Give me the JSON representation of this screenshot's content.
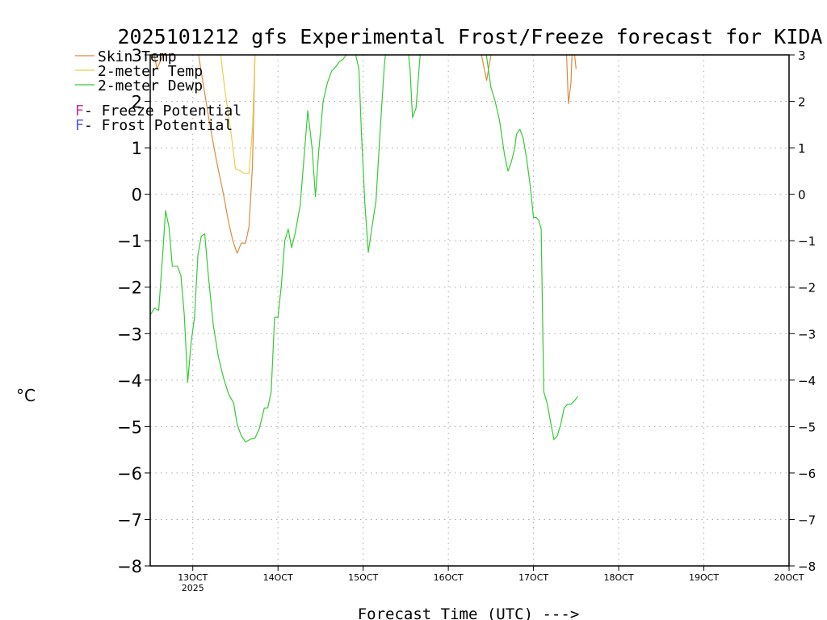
{
  "chart_data": {
    "type": "line",
    "title": "2025101212 gfs Experimental Frost/Freeze forecast for KIDA",
    "xlabel": "Forecast Time (UTC) --->",
    "ylabel_unit": "°C",
    "ylim": [
      -8,
      3
    ],
    "xlim_days": [
      12.5,
      20.0
    ],
    "y_ticks": [
      -8,
      -7,
      -6,
      -5,
      -4,
      -3,
      -2,
      -1,
      0,
      1,
      2,
      3
    ],
    "x_ticks": [
      {
        "day": 13,
        "label": "13OCT",
        "sublabel": "2025"
      },
      {
        "day": 14,
        "label": "14OCT",
        "sublabel": ""
      },
      {
        "day": 15,
        "label": "15OCT",
        "sublabel": ""
      },
      {
        "day": 16,
        "label": "16OCT",
        "sublabel": ""
      },
      {
        "day": 17,
        "label": "17OCT",
        "sublabel": ""
      },
      {
        "day": 18,
        "label": "18OCT",
        "sublabel": ""
      },
      {
        "day": 19,
        "label": "19OCT",
        "sublabel": ""
      },
      {
        "day": 20,
        "label": "20OCT",
        "sublabel": ""
      }
    ],
    "grid": true,
    "legend": [
      {
        "marker": "",
        "text": "Skin Temp",
        "color": "#e08a3c"
      },
      {
        "marker": "",
        "text": "2-meter Temp",
        "color": "#e8d04a"
      },
      {
        "marker": "",
        "text": "2-meter Dewp",
        "color": "#33cc33"
      },
      {
        "marker": "F",
        "text": " - Freeze Potential",
        "color": "#cc3399"
      },
      {
        "marker": "F",
        "text": " - Frost Potential",
        "color": "#5a5aee"
      }
    ],
    "series": [
      {
        "name": "Skin Temp",
        "color": "#e08a3c",
        "segments": [
          [
            [
              12.5,
              3.4
            ],
            [
              12.58,
              2.7
            ],
            [
              12.65,
              3.0
            ],
            [
              12.72,
              3.6
            ]
          ],
          [
            [
              13.05,
              3.2
            ],
            [
              13.12,
              2.4
            ],
            [
              13.2,
              1.5
            ],
            [
              13.28,
              0.7
            ],
            [
              13.36,
              0.0
            ],
            [
              13.42,
              -0.6
            ],
            [
              13.47,
              -1.0
            ],
            [
              13.52,
              -1.27
            ],
            [
              13.57,
              -1.05
            ],
            [
              13.62,
              -1.05
            ],
            [
              13.66,
              -0.7
            ],
            [
              13.7,
              0.6
            ],
            [
              13.73,
              3.0
            ],
            [
              13.75,
              3.6
            ]
          ],
          [
            [
              16.35,
              3.4
            ],
            [
              16.4,
              2.9
            ],
            [
              16.45,
              2.45
            ],
            [
              16.5,
              3.0
            ],
            [
              16.55,
              3.6
            ]
          ],
          [
            [
              17.38,
              3.4
            ],
            [
              17.41,
              1.95
            ],
            [
              17.44,
              2.4
            ],
            [
              17.46,
              3.4
            ],
            [
              17.5,
              2.7
            ]
          ]
        ]
      },
      {
        "name": "2-meter Temp",
        "color": "#e8d04a",
        "segments": [
          [
            [
              13.3,
              3.4
            ],
            [
              13.38,
              2.2
            ],
            [
              13.45,
              1.3
            ],
            [
              13.5,
              0.55
            ],
            [
              13.56,
              0.5
            ],
            [
              13.6,
              0.45
            ],
            [
              13.66,
              0.45
            ],
            [
              13.7,
              1.4
            ],
            [
              13.73,
              3.0
            ],
            [
              13.75,
              3.6
            ]
          ]
        ]
      },
      {
        "name": "2-meter Dewp",
        "color": "#33cc33",
        "segments": [
          [
            [
              12.5,
              -2.6
            ],
            [
              12.55,
              -2.45
            ],
            [
              12.6,
              -2.5
            ],
            [
              12.65,
              -1.2
            ],
            [
              12.68,
              -0.35
            ],
            [
              12.72,
              -0.7
            ],
            [
              12.76,
              -1.55
            ],
            [
              12.82,
              -1.55
            ],
            [
              12.86,
              -1.75
            ],
            [
              12.9,
              -2.6
            ],
            [
              12.94,
              -4.05
            ],
            [
              12.98,
              -3.2
            ],
            [
              13.02,
              -2.65
            ],
            [
              13.06,
              -1.3
            ],
            [
              13.1,
              -0.9
            ],
            [
              13.14,
              -0.85
            ],
            [
              13.18,
              -1.7
            ],
            [
              13.24,
              -2.8
            ],
            [
              13.3,
              -3.5
            ],
            [
              13.36,
              -3.95
            ],
            [
              13.42,
              -4.3
            ],
            [
              13.48,
              -4.5
            ],
            [
              13.52,
              -4.95
            ],
            [
              13.57,
              -5.2
            ],
            [
              13.62,
              -5.33
            ],
            [
              13.68,
              -5.27
            ],
            [
              13.73,
              -5.25
            ],
            [
              13.78,
              -5.05
            ],
            [
              13.84,
              -4.6
            ],
            [
              13.88,
              -4.6
            ],
            [
              13.92,
              -4.25
            ],
            [
              13.96,
              -2.65
            ],
            [
              14.0,
              -2.65
            ],
            [
              14.04,
              -1.95
            ],
            [
              14.08,
              -1.0
            ],
            [
              14.12,
              -0.75
            ],
            [
              14.16,
              -1.15
            ],
            [
              14.2,
              -0.85
            ],
            [
              14.26,
              -0.25
            ],
            [
              14.3,
              0.65
            ],
            [
              14.35,
              1.8
            ],
            [
              14.4,
              1.0
            ],
            [
              14.44,
              -0.05
            ],
            [
              14.48,
              0.95
            ],
            [
              14.53,
              2.0
            ],
            [
              14.58,
              2.4
            ],
            [
              14.63,
              2.65
            ],
            [
              14.68,
              2.75
            ],
            [
              14.72,
              2.85
            ],
            [
              14.76,
              2.9
            ],
            [
              14.8,
              3.0
            ],
            [
              14.84,
              3.2
            ],
            [
              14.9,
              3.1
            ],
            [
              14.95,
              2.7
            ],
            [
              14.98,
              1.3
            ],
            [
              15.02,
              -0.2
            ],
            [
              15.06,
              -1.25
            ],
            [
              15.1,
              -0.75
            ],
            [
              15.15,
              -0.15
            ],
            [
              15.2,
              1.4
            ],
            [
              15.25,
              2.8
            ],
            [
              15.3,
              3.6
            ]
          ],
          [
            [
              15.5,
              3.6
            ],
            [
              15.55,
              2.7
            ],
            [
              15.58,
              1.65
            ],
            [
              15.62,
              1.85
            ],
            [
              15.66,
              2.8
            ],
            [
              15.7,
              3.6
            ]
          ],
          [
            [
              16.4,
              3.6
            ],
            [
              16.45,
              2.95
            ],
            [
              16.5,
              2.3
            ],
            [
              16.55,
              2.0
            ],
            [
              16.6,
              1.6
            ],
            [
              16.66,
              0.85
            ],
            [
              16.7,
              0.5
            ],
            [
              16.74,
              0.7
            ],
            [
              16.78,
              1.0
            ],
            [
              16.8,
              1.3
            ],
            [
              16.84,
              1.4
            ],
            [
              16.88,
              1.2
            ],
            [
              16.92,
              0.75
            ],
            [
              16.96,
              0.2
            ],
            [
              17.0,
              -0.5
            ],
            [
              17.03,
              -0.5
            ],
            [
              17.06,
              -0.55
            ],
            [
              17.09,
              -0.75
            ],
            [
              17.12,
              -4.25
            ],
            [
              17.16,
              -4.5
            ],
            [
              17.2,
              -4.9
            ],
            [
              17.24,
              -5.28
            ],
            [
              17.28,
              -5.2
            ],
            [
              17.32,
              -4.95
            ],
            [
              17.36,
              -4.6
            ],
            [
              17.4,
              -4.52
            ],
            [
              17.44,
              -4.52
            ],
            [
              17.48,
              -4.45
            ],
            [
              17.52,
              -4.35
            ]
          ]
        ]
      }
    ]
  }
}
